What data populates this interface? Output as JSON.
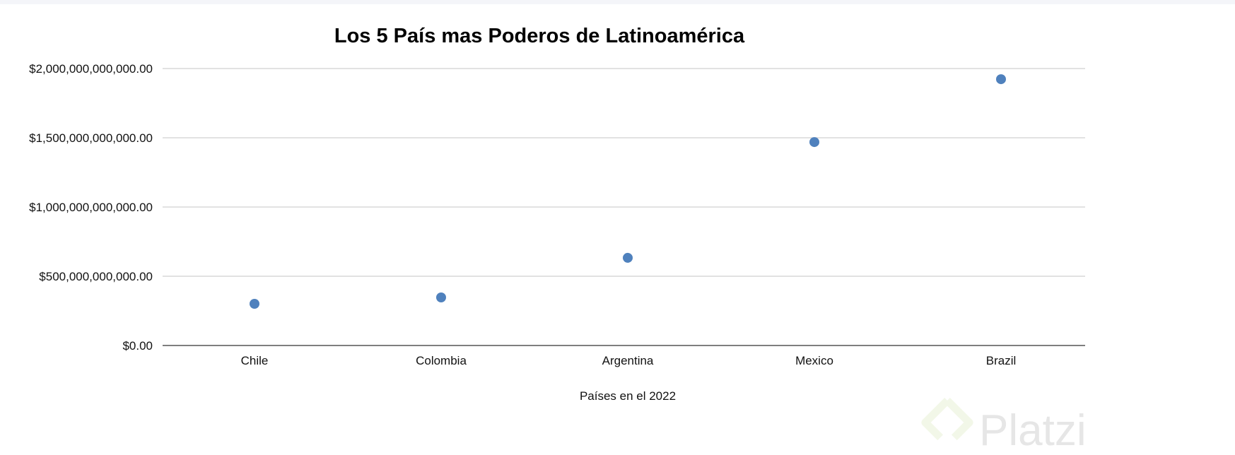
{
  "chart_data": {
    "type": "scatter",
    "title": "Los 5 País mas Poderos de Latinoamérica",
    "xlabel": "Países en el 2022",
    "ylabel": "",
    "categories": [
      "Chile",
      "Colombia",
      "Argentina",
      "Mexico",
      "Brazil"
    ],
    "values": [
      301000000000,
      347000000000,
      633000000000,
      1469000000000,
      1923000000000
    ],
    "ylim": [
      0,
      2000000000000
    ],
    "yticks": [
      0,
      500000000000,
      1000000000000,
      1500000000000,
      2000000000000
    ],
    "ytick_labels": [
      "$0.00",
      "$500,000,000,000.00",
      "$1,000,000,000,000.00",
      "$1,500,000,000,000.00",
      "$2,000,000,000,000.00"
    ],
    "grid": true,
    "marker_color": "#4f81bd"
  },
  "watermark": "Platzi"
}
